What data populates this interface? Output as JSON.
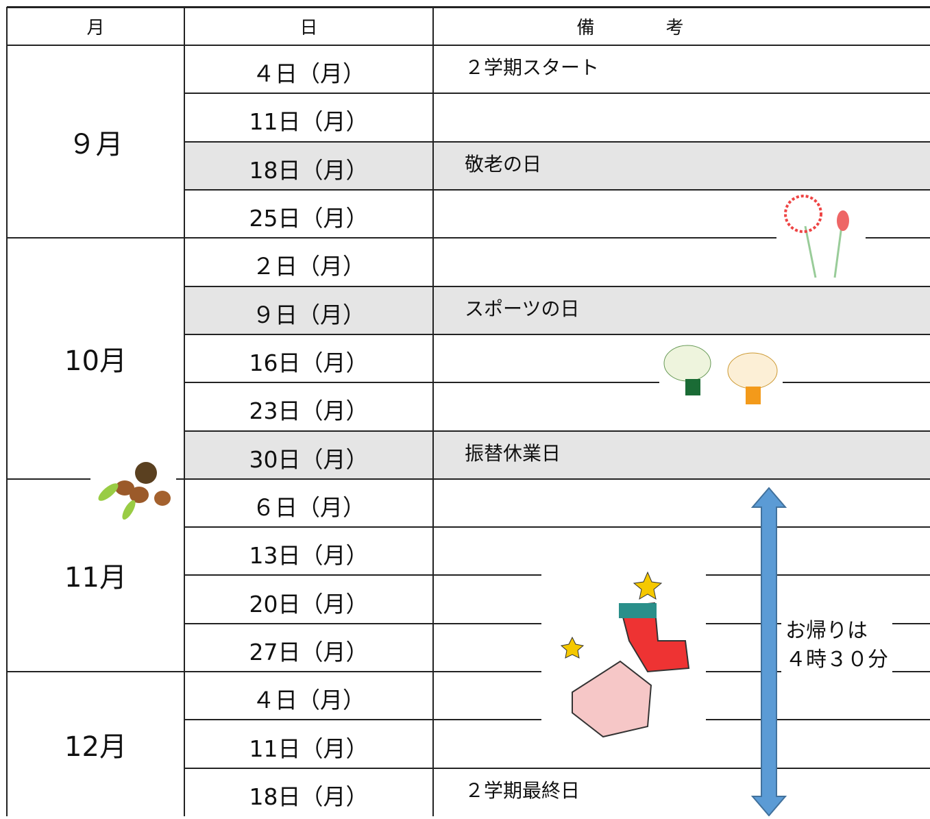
{
  "header": {
    "month": "月",
    "day": "日",
    "note": "備　　　　考"
  },
  "months": [
    {
      "label": "９月",
      "days": [
        {
          "date": "４日（月）",
          "note": "２学期スタート",
          "shaded": false
        },
        {
          "date": "11日（月）",
          "note": null,
          "shaded": false
        },
        {
          "date": "18日（月）",
          "note": "敬老の日",
          "shaded": true
        },
        {
          "date": "25日（月）",
          "note": null,
          "shaded": false
        }
      ]
    },
    {
      "label": "10月",
      "days": [
        {
          "date": "２日（月）",
          "note": null,
          "shaded": false
        },
        {
          "date": "９日（月）",
          "note": "スポーツの日",
          "shaded": true
        },
        {
          "date": "16日（月）",
          "note": null,
          "shaded": false
        },
        {
          "date": "23日（月）",
          "note": null,
          "shaded": false
        },
        {
          "date": "30日（月）",
          "note": "振替休業日",
          "shaded": true
        }
      ]
    },
    {
      "label": "11月",
      "days": [
        {
          "date": "６日（月）",
          "note": null,
          "shaded": false
        },
        {
          "date": "13日（月）",
          "note": null,
          "shaded": false
        },
        {
          "date": "20日（月）",
          "note": null,
          "shaded": false
        },
        {
          "date": "27日（月）",
          "note": null,
          "shaded": false
        }
      ]
    },
    {
      "label": "12月",
      "days": [
        {
          "date": "４日（月）",
          "note": null,
          "shaded": false
        },
        {
          "date": "11日（月）",
          "note": null,
          "shaded": false
        },
        {
          "date": "18日（月）",
          "note": "２学期最終日",
          "shaded": false
        }
      ]
    }
  ],
  "memo": {
    "line1": "お帰りは",
    "line2": "４時３０分"
  }
}
